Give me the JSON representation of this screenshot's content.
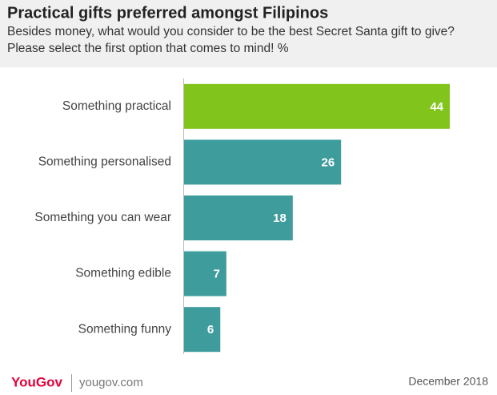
{
  "chart_data": {
    "type": "bar",
    "orientation": "horizontal",
    "title": "Practical gifts preferred amongst Filipinos",
    "subtitle": [
      "Besides money, what would you consider to be the best Secret Santa gift to give?",
      "Please select the first option that comes to mind! %"
    ],
    "categories": [
      "Something practical",
      "Something personalised",
      "Something you can wear",
      "Something edible",
      "Something funny"
    ],
    "values": [
      44,
      26,
      18,
      7,
      6
    ],
    "colors": [
      "#80c41c",
      "#3e9c9c",
      "#3e9c9c",
      "#3e9c9c",
      "#3e9c9c"
    ],
    "brand": "YouGov",
    "source": "yougov.com",
    "date": "December 2018"
  }
}
